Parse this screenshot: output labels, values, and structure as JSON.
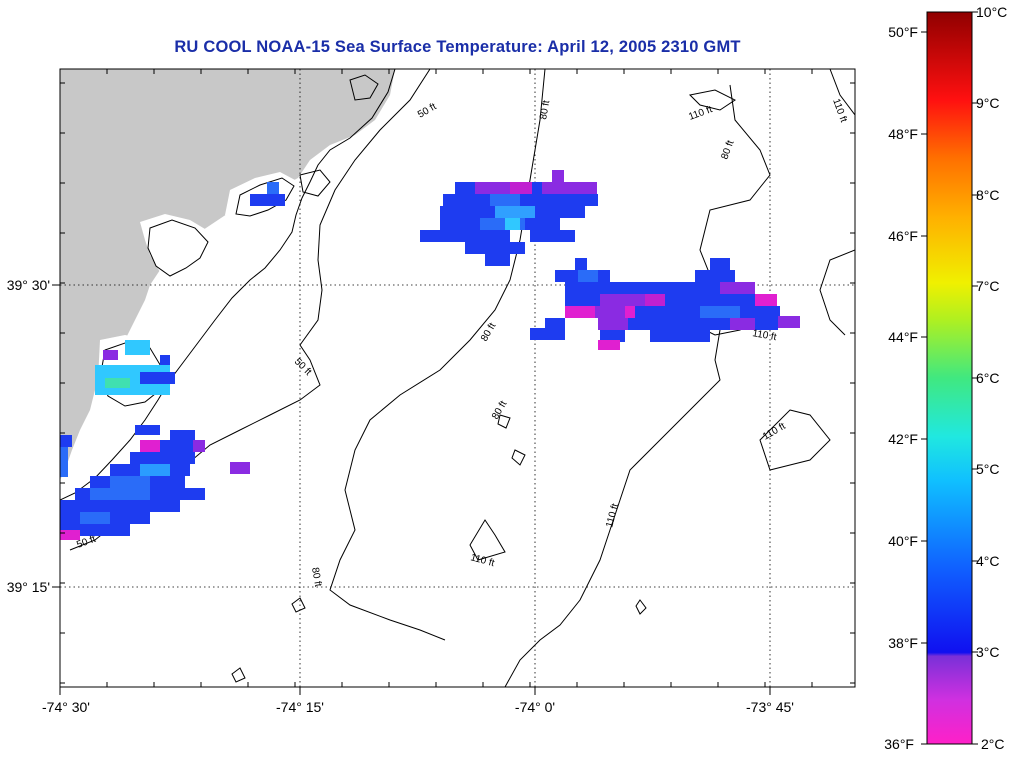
{
  "title": "RU COOL  NOAA-15  Sea Surface Temperature:  April 12, 2005 2310 GMT",
  "axes": {
    "lon_labels": [
      "-74° 30'",
      "-74° 15'",
      "-74° 0'",
      "-73° 45'"
    ],
    "lat_labels": [
      "39° 30'",
      "39° 15'"
    ]
  },
  "contour_labels": [
    "50 ft",
    "80 ft",
    "110 ft"
  ],
  "colorbar": {
    "fahrenheit": [
      "50°F",
      "48°F",
      "46°F",
      "44°F",
      "42°F",
      "40°F",
      "38°F",
      "36°F"
    ],
    "celsius": [
      "10°C",
      "9°C",
      "8°C",
      "7°C",
      "6°C",
      "5°C",
      "4°C",
      "3°C",
      "2°C"
    ]
  },
  "colors": {
    "title": "#1a2ea8",
    "land": "#c8c8c8",
    "water": "#ffffff",
    "sst_blue": "#1e3cf0",
    "sst_purple": "#8a2be2",
    "sst_magenta": "#e020d0"
  }
}
